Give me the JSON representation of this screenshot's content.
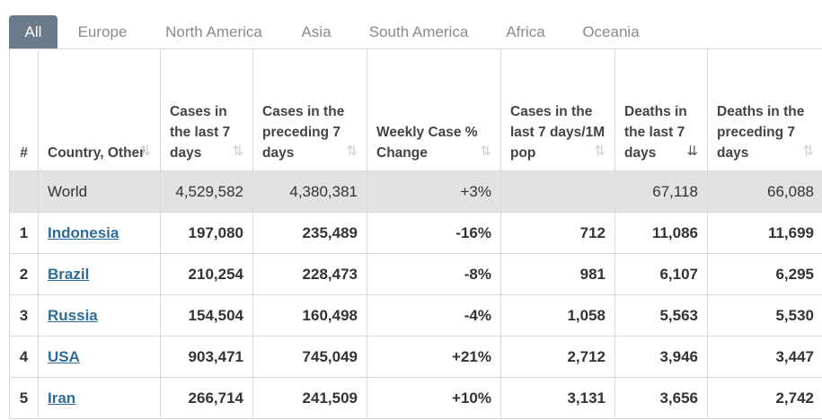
{
  "tabs": [
    "All",
    "Europe",
    "North America",
    "Asia",
    "South America",
    "Africa",
    "Oceania"
  ],
  "active_tab": "All",
  "columns": [
    {
      "label": "#"
    },
    {
      "label": "Country, Other"
    },
    {
      "label": "Cases in the last 7 days"
    },
    {
      "label": "Cases in the preceding 7 days"
    },
    {
      "label": "Weekly Case % Change"
    },
    {
      "label": "Cases in the last 7 days/1M pop"
    },
    {
      "label": "Deaths in the last 7 days"
    },
    {
      "label": "Deaths in the preceding 7 days"
    }
  ],
  "sorted_column": "Deaths in the last 7 days",
  "world": {
    "name": "World",
    "cases_last7": "4,529,582",
    "cases_prev7": "4,380,381",
    "weekly_change": "+3%",
    "cases_per_1m": "",
    "deaths_last7": "67,118",
    "deaths_prev7": "66,088"
  },
  "rows": [
    {
      "rank": "1",
      "country": "Indonesia",
      "cases_last7": "197,080",
      "cases_prev7": "235,489",
      "weekly_change": "-16%",
      "cases_per_1m": "712",
      "deaths_last7": "11,086",
      "deaths_prev7": "11,699"
    },
    {
      "rank": "2",
      "country": "Brazil",
      "cases_last7": "210,254",
      "cases_prev7": "228,473",
      "weekly_change": "-8%",
      "cases_per_1m": "981",
      "deaths_last7": "6,107",
      "deaths_prev7": "6,295"
    },
    {
      "rank": "3",
      "country": "Russia",
      "cases_last7": "154,504",
      "cases_prev7": "160,498",
      "weekly_change": "-4%",
      "cases_per_1m": "1,058",
      "deaths_last7": "5,563",
      "deaths_prev7": "5,530"
    },
    {
      "rank": "4",
      "country": "USA",
      "cases_last7": "903,471",
      "cases_prev7": "745,049",
      "weekly_change": "+21%",
      "cases_per_1m": "2,712",
      "deaths_last7": "3,946",
      "deaths_prev7": "3,447"
    },
    {
      "rank": "5",
      "country": "Iran",
      "cases_last7": "266,714",
      "cases_prev7": "241,509",
      "weekly_change": "+10%",
      "cases_per_1m": "3,131",
      "deaths_last7": "3,656",
      "deaths_prev7": "2,742"
    }
  ]
}
